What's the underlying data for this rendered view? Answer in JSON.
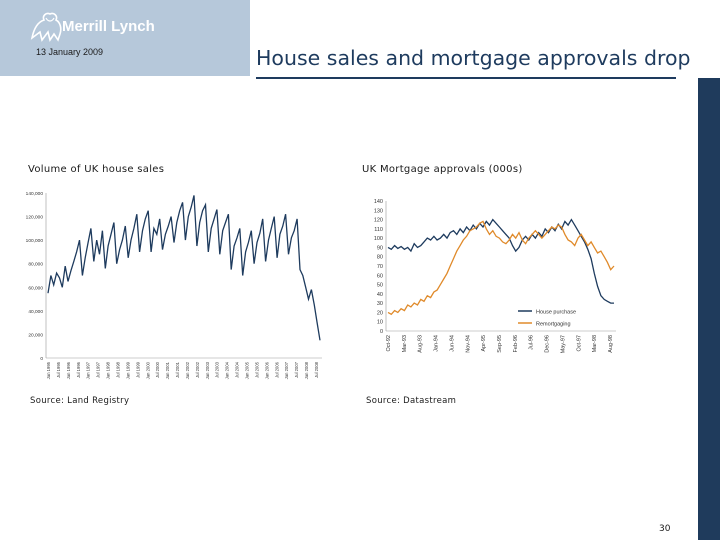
{
  "header": {
    "logo_text": "Merrill Lynch",
    "date": "13 January 2009"
  },
  "title": "House sales and mortgage approvals drop",
  "page_number": "30",
  "colors": {
    "header_bg": "#b6c8da",
    "navy": "#1e3b5e",
    "orange": "#e08a2a",
    "side_bar": "#1f3b5c"
  },
  "chart_data": [
    {
      "type": "line",
      "title": "Volume of UK house sales",
      "source": "Source: Land Registry",
      "ylim": [
        0,
        140000
      ],
      "y_ticks": [
        "0",
        "20,000",
        "40,000",
        "60,000",
        "80,000",
        "100,000",
        "120,000",
        "140,000"
      ],
      "x_ticks": [
        "Jan 1995",
        "Jul 1995",
        "Jan 1996",
        "Jul 1996",
        "Jan 1997",
        "Jul 1997",
        "Jan 1998",
        "Jul 1998",
        "Jan 1999",
        "Jul 1999",
        "Jan 2000",
        "Jul 2000",
        "Jan 2001",
        "Jul 2001",
        "Jan 2002",
        "Jul 2002",
        "Jan 2003",
        "Jul 2003",
        "Jan 2004",
        "Jul 2004",
        "Jan 2005",
        "Jul 2005",
        "Jan 2006",
        "Jul 2006",
        "Jan 2007",
        "Jul 2007",
        "Jan 2008",
        "Jul 2008"
      ],
      "series": [
        {
          "name": "",
          "color": "#1e3b5e",
          "values": [
            55000,
            70000,
            62000,
            72000,
            68000,
            60000,
            78000,
            65000,
            74000,
            82000,
            90000,
            100000,
            70000,
            85000,
            98000,
            110000,
            82000,
            100000,
            88000,
            108000,
            76000,
            95000,
            105000,
            115000,
            80000,
            92000,
            100000,
            112000,
            85000,
            100000,
            110000,
            122000,
            90000,
            108000,
            118000,
            125000,
            90000,
            110000,
            105000,
            118000,
            92000,
            105000,
            112000,
            120000,
            98000,
            115000,
            125000,
            132000,
            100000,
            120000,
            128000,
            138000,
            95000,
            115000,
            125000,
            130000,
            90000,
            110000,
            118000,
            126000,
            88000,
            108000,
            115000,
            122000,
            75000,
            95000,
            102000,
            110000,
            70000,
            90000,
            98000,
            108000,
            80000,
            98000,
            106000,
            118000,
            82000,
            100000,
            110000,
            120000,
            85000,
            105000,
            112000,
            122000,
            88000,
            102000,
            108000,
            118000,
            75000,
            70000,
            60000,
            50000,
            58000,
            45000,
            30000,
            15000
          ]
        }
      ]
    },
    {
      "type": "line",
      "title": "UK Mortgage approvals (000s)",
      "source": "Source: Datastream",
      "ylim": [
        0,
        140
      ],
      "y_ticks": [
        "0",
        "10",
        "20",
        "30",
        "40",
        "50",
        "60",
        "70",
        "80",
        "90",
        "100",
        "110",
        "120",
        "130",
        "140"
      ],
      "x_ticks": [
        "Oct-92",
        "Mar-93",
        "Aug-93",
        "Jan-94",
        "Jun-94",
        "Nov-94",
        "Apr-95",
        "Sep-95",
        "Feb-96",
        "Jul-96",
        "Dec-96",
        "May-97",
        "Oct-97",
        "Mar-98",
        "Aug-98"
      ],
      "series": [
        {
          "name": "House purchase",
          "color": "#1e3b5e",
          "values": [
            90,
            88,
            92,
            89,
            91,
            88,
            90,
            86,
            94,
            90,
            92,
            96,
            100,
            98,
            102,
            98,
            100,
            104,
            100,
            106,
            108,
            104,
            110,
            106,
            112,
            108,
            114,
            110,
            116,
            112,
            118,
            114,
            120,
            116,
            112,
            108,
            104,
            100,
            92,
            86,
            90,
            98,
            102,
            98,
            104,
            100,
            106,
            102,
            110,
            106,
            112,
            108,
            115,
            110,
            118,
            114,
            120,
            114,
            108,
            102,
            96,
            88,
            78,
            62,
            48,
            38,
            34,
            32,
            30,
            30
          ]
        },
        {
          "name": "Remortgaging",
          "color": "#e08a2a",
          "values": [
            20,
            18,
            22,
            20,
            24,
            22,
            28,
            26,
            30,
            28,
            34,
            32,
            38,
            36,
            42,
            44,
            50,
            56,
            62,
            70,
            78,
            86,
            92,
            98,
            102,
            108,
            110,
            112,
            116,
            118,
            110,
            104,
            108,
            102,
            100,
            96,
            94,
            98,
            104,
            100,
            106,
            98,
            94,
            100,
            104,
            108,
            104,
            100,
            104,
            108,
            112,
            110,
            114,
            112,
            104,
            98,
            96,
            92,
            100,
            104,
            98,
            92,
            96,
            90,
            84,
            86,
            80,
            74,
            66,
            70
          ]
        }
      ]
    }
  ]
}
